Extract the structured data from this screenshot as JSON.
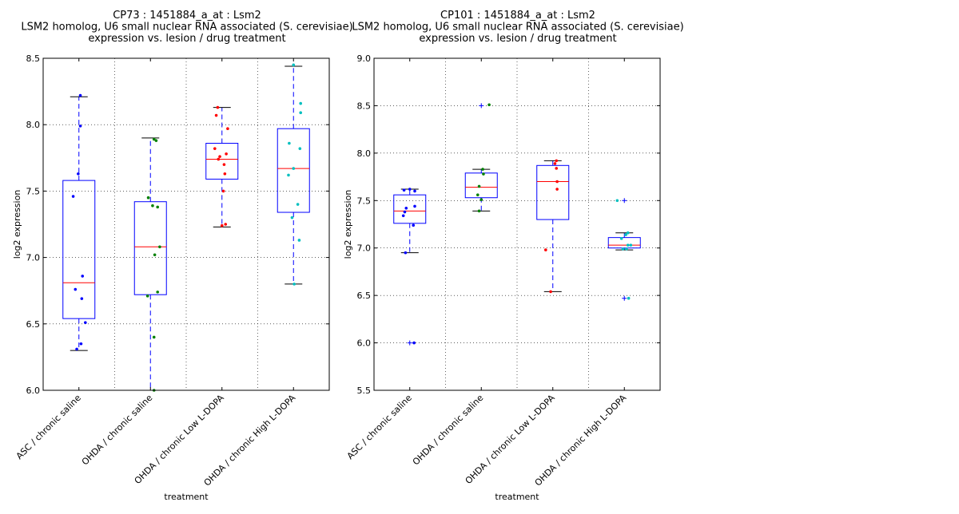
{
  "chart_data": [
    {
      "type": "box",
      "title_lines": [
        "CP73 : 1451884_a_at : Lsm2",
        "LSM2 homolog, U6 small nuclear RNA associated (S. cerevisiae)",
        "expression vs. lesion / drug treatment"
      ],
      "xlabel": "treatment",
      "ylabel": "log2 expression",
      "ylim": [
        6.0,
        8.5
      ],
      "yticks": [
        "6.0",
        "6.5",
        "7.0",
        "7.5",
        "8.0",
        "8.5"
      ],
      "grid": true,
      "categories": [
        "ASC / chronic saline",
        "OHDA / chronic saline",
        "OHDA / chronic Low L-DOPA",
        "OHDA / chronic High L-DOPA"
      ],
      "colors": [
        "#0000ff",
        "#008000",
        "#ff0000",
        "#00bfbf"
      ],
      "boxes": [
        {
          "q1": 6.54,
          "median": 6.81,
          "q3": 7.58,
          "whisker_low": 6.3,
          "whisker_high": 8.21,
          "outliers": []
        },
        {
          "q1": 6.72,
          "median": 7.08,
          "q3": 7.42,
          "whisker_low": 6.0,
          "whisker_high": 7.9,
          "outliers": []
        },
        {
          "q1": 7.59,
          "median": 7.74,
          "q3": 7.86,
          "whisker_low": 7.23,
          "whisker_high": 8.13,
          "outliers": []
        },
        {
          "q1": 7.34,
          "median": 7.67,
          "q3": 7.97,
          "whisker_low": 6.8,
          "whisker_high": 8.44,
          "outliers": []
        }
      ],
      "points": [
        [
          [
            0.02,
            8.22
          ],
          [
            0.02,
            7.99
          ],
          [
            -0.01,
            7.63
          ],
          [
            -0.08,
            7.46
          ],
          [
            0.05,
            6.86
          ],
          [
            -0.05,
            6.76
          ],
          [
            0.04,
            6.69
          ],
          [
            0.09,
            6.51
          ],
          [
            0.03,
            6.35
          ],
          [
            -0.03,
            6.31
          ]
        ],
        [
          [
            0.05,
            7.89
          ],
          [
            0.08,
            7.88
          ],
          [
            -0.03,
            7.45
          ],
          [
            0.03,
            7.39
          ],
          [
            0.1,
            7.38
          ],
          [
            0.13,
            7.08
          ],
          [
            0.06,
            7.02
          ],
          [
            0.1,
            6.74
          ],
          [
            -0.04,
            6.71
          ],
          [
            0.05,
            6.4
          ],
          [
            0.05,
            6.0
          ]
        ],
        [
          [
            -0.06,
            8.13
          ],
          [
            -0.08,
            8.07
          ],
          [
            0.08,
            7.97
          ],
          [
            -0.1,
            7.82
          ],
          [
            0.06,
            7.78
          ],
          [
            -0.03,
            7.76
          ],
          [
            -0.05,
            7.74
          ],
          [
            0.03,
            7.7
          ],
          [
            0.04,
            7.63
          ],
          [
            0.02,
            7.5
          ],
          [
            0.05,
            7.25
          ],
          [
            0.0,
            7.24
          ]
        ],
        [
          [
            0.0,
            8.45
          ],
          [
            0.1,
            8.16
          ],
          [
            0.1,
            8.09
          ],
          [
            -0.06,
            7.86
          ],
          [
            0.09,
            7.82
          ],
          [
            0.0,
            7.67
          ],
          [
            -0.07,
            7.62
          ],
          [
            0.06,
            7.4
          ],
          [
            -0.02,
            7.3
          ],
          [
            0.08,
            7.13
          ],
          [
            0.01,
            6.8
          ]
        ]
      ]
    },
    {
      "type": "box",
      "title_lines": [
        "CP101 : 1451884_a_at : Lsm2",
        "LSM2 homolog, U6 small nuclear RNA associated (S. cerevisiae)",
        "expression vs. lesion / drug treatment"
      ],
      "xlabel": "treatment",
      "ylabel": "log2 expression",
      "ylim": [
        5.5,
        9.0
      ],
      "yticks": [
        "5.5",
        "6.0",
        "6.5",
        "7.0",
        "7.5",
        "8.0",
        "8.5",
        "9.0"
      ],
      "grid": true,
      "categories": [
        "ASC / chronic saline",
        "OHDA / chronic saline",
        "OHDA / chronic Low L-DOPA",
        "OHDA / chronic High L-DOPA"
      ],
      "colors": [
        "#0000ff",
        "#008000",
        "#ff0000",
        "#00bfbf"
      ],
      "boxes": [
        {
          "q1": 7.26,
          "median": 7.39,
          "q3": 7.56,
          "whisker_low": 6.95,
          "whisker_high": 7.62,
          "outliers": [
            6.0
          ]
        },
        {
          "q1": 7.53,
          "median": 7.64,
          "q3": 7.79,
          "whisker_low": 7.39,
          "whisker_high": 7.83,
          "outliers": [
            8.5
          ]
        },
        {
          "q1": 7.3,
          "median": 7.7,
          "q3": 7.87,
          "whisker_low": 6.54,
          "whisker_high": 7.92,
          "outliers": []
        },
        {
          "q1": 7.0,
          "median": 7.03,
          "q3": 7.11,
          "whisker_low": 6.98,
          "whisker_high": 7.16,
          "outliers": [
            7.5,
            6.47
          ]
        }
      ],
      "points": [
        [
          [
            -0.08,
            7.61
          ],
          [
            0.0,
            7.62
          ],
          [
            0.07,
            7.6
          ],
          [
            0.07,
            7.44
          ],
          [
            -0.05,
            7.42
          ],
          [
            -0.09,
            7.34
          ],
          [
            -0.07,
            7.38
          ],
          [
            0.05,
            7.24
          ],
          [
            -0.06,
            6.95
          ],
          [
            0.06,
            6.0
          ]
        ],
        [
          [
            0.11,
            8.51
          ],
          [
            0.02,
            7.83
          ],
          [
            0.03,
            7.78
          ],
          [
            -0.03,
            7.65
          ],
          [
            -0.05,
            7.56
          ],
          [
            0.0,
            7.51
          ],
          [
            -0.03,
            7.39
          ]
        ],
        [
          [
            0.05,
            7.92
          ],
          [
            0.03,
            7.89
          ],
          [
            0.05,
            7.84
          ],
          [
            0.06,
            7.7
          ],
          [
            0.06,
            7.62
          ],
          [
            -0.1,
            6.98
          ],
          [
            -0.03,
            6.54
          ]
        ],
        [
          [
            -0.1,
            7.5
          ],
          [
            0.05,
            7.16
          ],
          [
            0.02,
            7.14
          ],
          [
            -0.04,
            7.1
          ],
          [
            0.05,
            7.03
          ],
          [
            0.09,
            7.03
          ],
          [
            -0.02,
            6.99
          ],
          [
            0.03,
            6.99
          ],
          [
            0.06,
            6.47
          ]
        ]
      ]
    }
  ]
}
